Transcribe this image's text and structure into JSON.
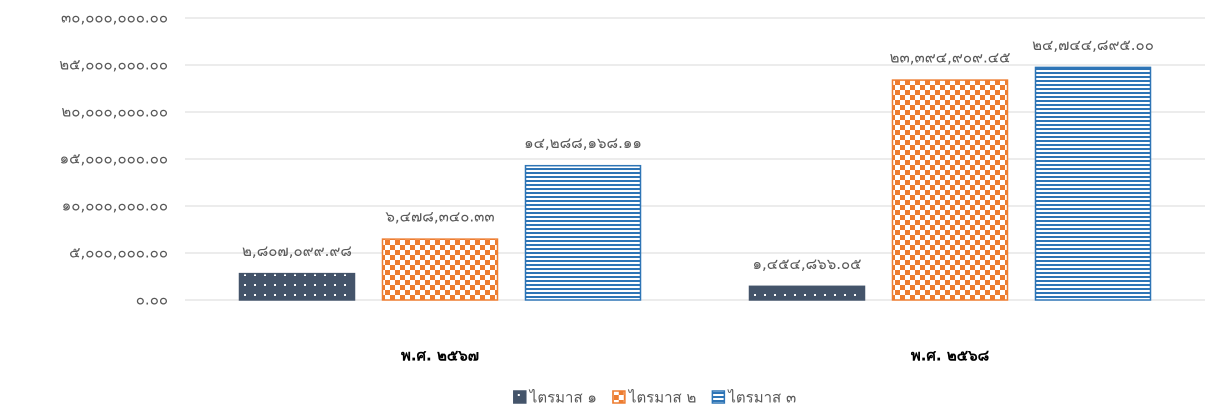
{
  "chart_data": {
    "type": "bar",
    "categories": [
      "พ.ศ. ๒๕๖๗",
      "พ.ศ. ๒๕๖๘"
    ],
    "series": [
      {
        "name": "ไตรมาส ๑",
        "color": "#44546a",
        "values": [
          2807099.98,
          1454866.05
        ],
        "value_labels": [
          "๒,๘๐๗,๐๙๙.๙๘",
          "๑,๔๕๔,๘๖๖.๐๕"
        ]
      },
      {
        "name": "ไตรมาส ๒",
        "color": "#ed7d31",
        "values": [
          6478340.33,
          23394909.45
        ],
        "value_labels": [
          "๖,๔๗๘,๓๔๐.๓๓",
          "๒๓,๓๙๔,๙๐๙.๔๕"
        ]
      },
      {
        "name": "ไตรมาส ๓",
        "color": "#2e75b6",
        "values": [
          14288168.11,
          24744895.0
        ],
        "value_labels": [
          "๑๔,๒๘๘,๑๖๘.๑๑",
          "๒๔,๗๔๔,๘๙๕.๐๐"
        ]
      }
    ],
    "ylim": [
      0,
      30000000
    ],
    "yticks": [
      {
        "value": 0,
        "label": "๐.๐๐"
      },
      {
        "value": 5000000,
        "label": "๕,๐๐๐,๐๐๐.๐๐"
      },
      {
        "value": 10000000,
        "label": "๑๐,๐๐๐,๐๐๐.๐๐"
      },
      {
        "value": 15000000,
        "label": "๑๕,๐๐๐,๐๐๐.๐๐"
      },
      {
        "value": 20000000,
        "label": "๒๐,๐๐๐,๐๐๐.๐๐"
      },
      {
        "value": 25000000,
        "label": "๒๕,๐๐๐,๐๐๐.๐๐"
      },
      {
        "value": 30000000,
        "label": "๓๐,๐๐๐,๐๐๐.๐๐"
      }
    ],
    "grid": true,
    "legend": "bottom"
  }
}
